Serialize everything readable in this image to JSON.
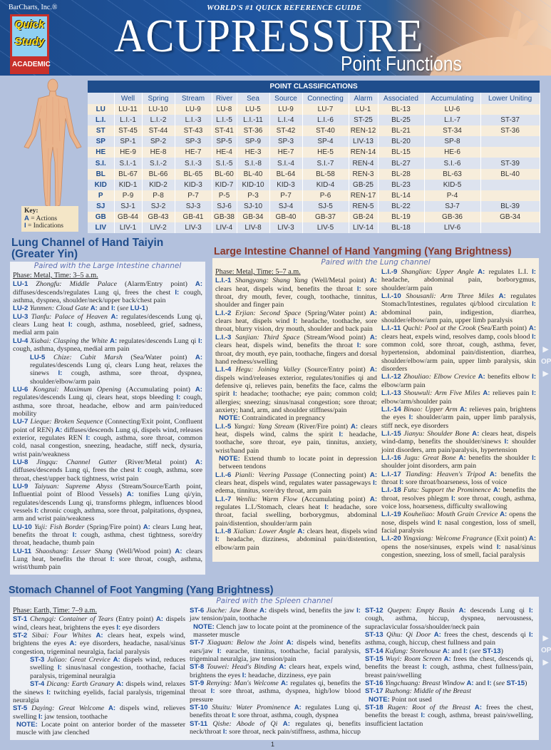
{
  "header": {
    "brand": "BarCharts, Inc.®",
    "logo_line1": "Quick",
    "logo_line2": "Study",
    "logo_line3": "ACADEMIC",
    "tagline": "WORLD'S #1 QUICK REFERENCE GUIDE",
    "title": "ACUPRESSURE",
    "subtitle": "Point Functions"
  },
  "key": {
    "title": "Key:",
    "a": "A",
    "a_text": "= Actions",
    "i": "I",
    "i_text": "= Indications"
  },
  "labels": {
    "a": "A:",
    "i": "I:",
    "note": "NOTE:",
    "and": "and",
    "see": "see"
  },
  "colors": {
    "header_blue": "#1f4d8c",
    "code_blue": "#1d4f9c",
    "li_title": "#8c3a2b",
    "page_bg": "#b3c1dd"
  },
  "table": {
    "title": "POINT CLASSIFICATIONS",
    "columns": [
      "Well",
      "Spring",
      "Stream",
      "River",
      "Sea",
      "Source",
      "Connecting",
      "Alarm",
      "Associated",
      "Accumulating",
      "Lower Uniting"
    ],
    "rows": [
      {
        "label": "LU",
        "cells": [
          "LU-11",
          "LU-10",
          "LU-9",
          "LU-8",
          "LU-5",
          "LU-9",
          "LU-7",
          "LU-1",
          "BL-13",
          "LU-6",
          ""
        ]
      },
      {
        "label": "L.I.",
        "cells": [
          "L.I.-1",
          "L.I.-2",
          "L.I.-3",
          "L.I.-5",
          "L.I.-11",
          "L.I.-4",
          "L.I.-6",
          "ST-25",
          "BL-25",
          "L.I.-7",
          "ST-37"
        ]
      },
      {
        "label": "ST",
        "cells": [
          "ST-45",
          "ST-44",
          "ST-43",
          "ST-41",
          "ST-36",
          "ST-42",
          "ST-40",
          "REN-12",
          "BL-21",
          "ST-34",
          "ST-36"
        ]
      },
      {
        "label": "SP",
        "cells": [
          "SP-1",
          "SP-2",
          "SP-3",
          "SP-5",
          "SP-9",
          "SP-3",
          "SP-4",
          "LIV-13",
          "BL-20",
          "SP-8",
          ""
        ]
      },
      {
        "label": "HE",
        "cells": [
          "HE-9",
          "HE-8",
          "HE-7",
          "HE-4",
          "HE-3",
          "HE-7",
          "HE-5",
          "REN-14",
          "BL-15",
          "HE-6",
          ""
        ]
      },
      {
        "label": "S.I.",
        "cells": [
          "S.I.-1",
          "S.I.-2",
          "S.I.-3",
          "S.I.-5",
          "S.I.-8",
          "S.I.-4",
          "S.I.-7",
          "REN-4",
          "BL-27",
          "S.I.-6",
          "ST-39"
        ]
      },
      {
        "label": "BL",
        "cells": [
          "BL-67",
          "BL-66",
          "BL-65",
          "BL-60",
          "BL-40",
          "BL-64",
          "BL-58",
          "REN-3",
          "BL-28",
          "BL-63",
          "BL-40"
        ]
      },
      {
        "label": "KID",
        "cells": [
          "KID-1",
          "KID-2",
          "KID-3",
          "KID-7",
          "KID-10",
          "KID-3",
          "KID-4",
          "GB-25",
          "BL-23",
          "KID-5",
          ""
        ]
      },
      {
        "label": "P",
        "cells": [
          "P-9",
          "P-8",
          "P-7",
          "P-5",
          "P-3",
          "P-7",
          "P-6",
          "REN-17",
          "BL-14",
          "P-4",
          ""
        ]
      },
      {
        "label": "SJ",
        "cells": [
          "SJ-1",
          "SJ-2",
          "SJ-3",
          "SJ-6",
          "SJ-10",
          "SJ-4",
          "SJ-5",
          "REN-5",
          "BL-22",
          "SJ-7",
          "BL-39"
        ]
      },
      {
        "label": "GB",
        "cells": [
          "GB-44",
          "GB-43",
          "GB-41",
          "GB-38",
          "GB-34",
          "GB-40",
          "GB-37",
          "GB-24",
          "BL-19",
          "GB-36",
          "GB-34"
        ]
      },
      {
        "label": "LIV",
        "cells": [
          "LIV-1",
          "LIV-2",
          "LIV-3",
          "LIV-4",
          "LIV-8",
          "LIV-3",
          "LIV-5",
          "LIV-14",
          "BL-18",
          "LIV-6",
          ""
        ]
      }
    ]
  },
  "lung": {
    "title": "Lung Channel of Hand Taiyin (Greater Yin)",
    "paired": "Paired with the Large Intestine channel",
    "phase": "Phase: Metal, Time: 3–5 a.m.",
    "entries": [
      {
        "code": "LU-1",
        "name": "Zhongfu: Middle Palace",
        "extra": "(Alarm/Entry point)",
        "action": "diffuses/descends/regulates Lung qi, frees the chest",
        "indication": "cough, asthma, dyspnea, shoulder/neck/upper back/chest pain"
      },
      {
        "code": "LU-2",
        "name": "Yunmen: Cloud Gate",
        "see": "LU-1"
      },
      {
        "code": "LU-3",
        "name": "Tianfu: Palace of Heaven",
        "action": "regulates/descends Lung qi, clears Lung heat",
        "indication": "cough, asthma, nosebleed, grief, sadness, medial arm pain"
      },
      {
        "code": "LU-4",
        "name": "Xiabai: Clasping the White",
        "action": "regulates/descends Lung qi",
        "indication": "cough, asthma, dyspnea, medial arm pain"
      },
      {
        "code": "LU-5",
        "indent": "block",
        "name": "Chize: Cubit Marsh",
        "extra": "(Sea/Water point)",
        "action": "regulates/descends Lung qi, clears Lung heat, relaxes the sinews",
        "indication": "cough, asthma, sore throat, dyspnea, shoulder/elbow/arm pain"
      },
      {
        "code": "LU-6",
        "name": "Kongzui: Maximum Opening",
        "extra": "(Accumulating point)",
        "action": "regulates/descends Lung qi, clears heat, stops bleeding",
        "indication": "cough, asthma, sore throat, headache, elbow and arm pain/reduced mobility"
      },
      {
        "code": "LU-7",
        "name": "Lieque: Broken Sequence",
        "extra": "(Connecting/Exit point, Confluent point of REN)",
        "action": "diffuses/descends Lung qi, dispels wind, releases exterior, regulates REN",
        "indication": "cough, asthma, sore throat, common cold, nasal congestion, sneezing, headache, stiff neck, dysuria, wrist pain/weakness"
      },
      {
        "code": "LU-8",
        "name": "Jingqu: Channel Gutter",
        "extra": "(River/Metal point)",
        "action": "diffuses/descends Lung qi, frees the chest",
        "indication": "cough, asthma, sore throat, chest/upper back tightness, wrist pain"
      },
      {
        "code": "LU-9",
        "name": "Taiyuan: Supreme Abyss",
        "extra": "(Stream/Source/Earth point, Influential point of Blood Vessels)",
        "action": "tonifies Lung qi/yin, regulates/descends Lung qi, transforms phlegm, influences blood vessels",
        "indication": "chronic cough, asthma, sore throat, palpitations, dyspnea, arm and wrist pain/weakness"
      },
      {
        "code": "LU-10",
        "name": "Yuji: Fish Border",
        "extra": "(Spring/Fire point)",
        "action": "clears Lung heat, benefits the throat",
        "indication": "cough, asthma, chest tightness, sore/dry throat, headache, thumb pain"
      },
      {
        "code": "LU-11",
        "name": "Shaoshang: Lesser Shang",
        "extra": "(Well/Wood point)",
        "action": "clears Lung heat, benefits the throat",
        "indication": "sore throat, cough, asthma, wrist/thumb pain"
      }
    ]
  },
  "large_intestine": {
    "title": "Large Intestine Channel of Hand Yangming (Yang Brightness)",
    "paired": "Paired with the Lung channel",
    "phase": "Phase: Metal, Time: 5–7 a.m.",
    "columns": [
      [
        {
          "code": "L.I.-1",
          "name": "Shangyang: Shang Yang",
          "extra": "(Well/Metal point)",
          "action": "clears heat, dispels wind, benefits the throat",
          "indication": "sore throat, dry mouth, fever, cough, toothache, tinnitus, shoulder and finger pain"
        },
        {
          "code": "L.I.-2",
          "name": "Erjian: Second Space",
          "extra": "(Spring/Water point)",
          "action": "clears heat, dispels wind",
          "indication": "headache, toothache, sore throat, blurry vision, dry mouth, shoulder and back pain"
        },
        {
          "code": "L.I.-3",
          "name": "Sanjian: Third Space",
          "extra": "(Stream/Wood point)",
          "action": "clears heat, dispels wind, benefits the throat",
          "indication": "sore throat, dry mouth, eye pain, toothache, fingers and dorsal hand redness/swelling"
        },
        {
          "code": "L.I.-4",
          "name": "Hegu: Joining Valley",
          "extra": "(Source/Entry point)",
          "action": "dispels wind/releases exterior, regulates/tonifies qi and defensive qi, relieves pain, benefits the face, calms the spirit",
          "indication": "headache; toothache; eye pain; common cold; allergies; sneezing; sinus/nasal congestion; sore throat; anxiety; hand, arm, and shoulder stiffness/pain"
        },
        {
          "note": "Contraindicated in pregnancy"
        },
        {
          "code": "L.I.-5",
          "name": "Yangxi: Yang Stream",
          "extra": "(River/Fire point)",
          "action": "clears heat, dispels wind, calms the spirit",
          "indication": "headache, toothache, sore throat, eye pain, tinnitus, anxiety, wrist/hand pain"
        },
        {
          "note": "Extend thumb to locate point in depression between tendons"
        },
        {
          "code": "L.I.-6",
          "name": "Pianli: Veering Passage",
          "extra": "(Connecting point)",
          "action": "clears heat, dispels wind, regulates water passageways",
          "indication": "edema, tinnitus, sore/dry throat, arm pain"
        },
        {
          "code": "L.I.-7",
          "name": "Wenliu: Warm Flow",
          "extra": "(Accumulating point)",
          "action": "regulates L.I./Stomach, clears heat",
          "indication": "headache, sore throat, facial swelling, borborygmus, abdominal pain/distention, shoulder/arm pain"
        },
        {
          "code": "L.I.-8",
          "name": "Xialian: Lower Angle",
          "action": "clears heat, dispels wind",
          "indication": "headache, dizziness, abdominal pain/distention, elbow/arm pain"
        }
      ],
      [
        {
          "code": "L.I.-9",
          "name": "Shanglian: Upper Angle",
          "action": "regulates L.I.",
          "indication": "headache, abdominal pain, borborygmus, shoulder/arm pain"
        },
        {
          "code": "L.I.-10",
          "name": "Shousanli: Arm Three Miles",
          "action": "regulates Stomach/Intestines, regulates qi/blood circulation",
          "indication": "abdominal pain, indigestion, diarrhea, shoulder/elbow/arm pain, upper limb paralysis"
        },
        {
          "code": "L.I.-11",
          "name": "Quchi: Pool at the Crook",
          "extra": "(Sea/Earth point)",
          "action": "clears heat, expels wind, resolves damp, cools blood",
          "indication": "common cold, sore throat, cough, asthma, fever, hypertension, abdominal pain/distention, diarrhea, shoulder/elbow/arm pain, upper limb paralysis, skin disorders"
        },
        {
          "code": "L.I.-12",
          "name": "Zhouliao: Elbow Crevice",
          "action": "benefits elbow",
          "indication": "elbow/arm pain"
        },
        {
          "code": "L.I.-13",
          "name": "Shouwuli: Arm Five Miles",
          "action": "relieves pain",
          "indication": "elbow/arm/shoulder pain"
        },
        {
          "code": "L.I.-14",
          "name": "Binao: Upper Arm",
          "action": "relieves pain, brightens the eyes",
          "indication": "shoulder/arm pain, upper limb paralysis, stiff neck, eye disorders"
        },
        {
          "code": "L.I.-15",
          "name": "Jianyu: Shoulder Bone",
          "action": "clears heat, dispels wind-damp, benefits the shoulder/sinews",
          "indication": "shoulder joint disorders, arm pain/paralysis, hypertension"
        },
        {
          "code": "L.I.-16",
          "name": "Jugu: Great Bone",
          "action": "benefits the shoulder",
          "indication": "shoulder joint disorders, arm pain"
        },
        {
          "code": "L.I.-17",
          "name": "Tianding: Heaven's Tripod",
          "action": "benefits the throat",
          "indication": "sore throat/hoarseness, loss of voice"
        },
        {
          "code": "L.I.-18",
          "name": "Futu: Support the Prominence",
          "action": "benefits the throat, resolves phlegm",
          "indication": "sore throat, cough, asthma, voice loss, hoarseness, difficulty swallowing"
        },
        {
          "code": "L.I.-19",
          "name": "Kouheliao: Mouth Grain Crevice",
          "action": "opens the nose, dispels wind",
          "indication": "nasal congestion, loss of smell, facial paralysis"
        },
        {
          "code": "L.I.-20",
          "name": "Yingxiang: Welcome Fragrance",
          "extra": "(Exit point)",
          "action": "opens the nose/sinuses, expels wind",
          "indication": "nasal/sinus congestion, sneezing, loss of smell, facial paralysis"
        }
      ]
    ]
  },
  "stomach": {
    "title": "Stomach Channel of Foot Yangming (Yang Brightness)",
    "paired": "Paired with the Spleen channel",
    "phase": "Phase: Earth, Time: 7–9 a.m.",
    "columns": [
      [
        {
          "code": "ST-1",
          "name": "Chengqi: Container of Tears",
          "extra": "(Entry point)",
          "action": "dispels wind, clears heat, brightens the eyes",
          "indication": "eye disorders"
        },
        {
          "code": "ST-2",
          "name": "Sibai: Four Whites",
          "action": "clears heat, expels wind, brightens the eyes",
          "i_label": "A:",
          "indication": "eye disorders, headache, nasal/sinus congestion, trigeminal neuralgia, facial paralysis"
        },
        {
          "code": "ST-3",
          "indent": "block",
          "name": "Juliao: Great Crevice",
          "action": "dispels wind, reduces swelling",
          "indication": "sinus/nasal congestion, toothache, facial paralysis, trigeminal neuralgia"
        },
        {
          "code": "ST-4",
          "indent": "first",
          "name": "Dicang: Earth Granary",
          "action": "dispels wind, relaxes the sinews",
          "indication": "twitching eyelids, facial paralysis, trigeminal neuralgia"
        },
        {
          "code": "ST-5",
          "name": "Daying: Great Welcome",
          "action": "dispels wind, relieves swelling",
          "indication": "jaw tension, toothache"
        },
        {
          "note": "Locate point on anterior border of the masseter muscle with jaw clenched"
        }
      ],
      [
        {
          "code": "ST-6",
          "name": "Jiache: Jaw Bone",
          "action": "dispels wind, benefits the jaw",
          "indication": "jaw tension/pain, toothache"
        },
        {
          "note": "Clench jaw to locate point at the prominence of the masseter muscle"
        },
        {
          "code": "ST-7",
          "name": "Xiaguan: Below the Joint",
          "action": "dispels wind, benefits ears/jaw",
          "indication": "earache, tinnitus, toothache, facial paralysis, trigeminal neuralgia, jaw tension/pain"
        },
        {
          "code": "ST-8",
          "name": "Touwei: Head's Binding",
          "action": "clears heat, expels wind, brightens the eyes",
          "indication": "headache, dizziness, eye pain"
        },
        {
          "code": "ST-9",
          "name": "Renying: Man's Welcome",
          "action": "regulates qi, benefits the throat",
          "indication": "sore throat, asthma, dyspnea, high/low blood pressure"
        },
        {
          "code": "ST-10",
          "name": "Shuitu: Water Prominence",
          "action": "regulates Lung qi, benefits throat",
          "indication": "sore throat, asthma, cough, dyspnea"
        },
        {
          "code": "ST-11",
          "name": "Qishe: Abode of Qi",
          "action": "regulates qi, benefits neck/throat",
          "indication": "sore throat, neck pain/stiffness, asthma, hiccup"
        }
      ],
      [
        {
          "code": "ST-12",
          "name": "Quepen: Empty Basin",
          "action": "descends Lung qi",
          "indication": "cough, asthma, hiccup, dyspnea, nervousness, supraclavicular fossa/shoulder/neck pain"
        },
        {
          "code": "ST-13",
          "name": "Qihu: Qi Door",
          "action": "frees the chest, descends qi",
          "indication": "asthma, cough, hiccup, chest fullness and pain"
        },
        {
          "code": "ST-14",
          "name": "Kufang: Storehouse",
          "see": "ST-13"
        },
        {
          "code": "ST-15",
          "name": "Wuyi: Room Screen",
          "action": "frees the chest, descends qi, benefits the breast",
          "indication": "cough, asthma, chest fullness/pain, breast pain/swelling"
        },
        {
          "code": "ST-16",
          "name": "Yingchuang: Breast Window",
          "see": "ST-15"
        },
        {
          "code": "ST-17",
          "name": "Ruzhong: Middle of the Breast"
        },
        {
          "note": "Point not used"
        },
        {
          "code": "ST-18",
          "name": "Rugen: Root of the Breast",
          "action": "frees the chest, benefits the breast",
          "indication": "cough, asthma, breast pain/swelling, insufficient lactation"
        }
      ]
    ]
  },
  "open_tab": "OPEN",
  "page_number": "1"
}
